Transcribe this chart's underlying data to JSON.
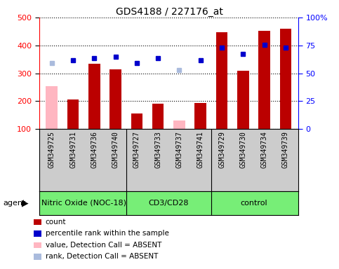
{
  "title": "GDS4188 / 227176_at",
  "samples": [
    "GSM349725",
    "GSM349731",
    "GSM349736",
    "GSM349740",
    "GSM349727",
    "GSM349733",
    "GSM349737",
    "GSM349741",
    "GSM349729",
    "GSM349730",
    "GSM349734",
    "GSM349739"
  ],
  "bar_values": [
    255,
    207,
    333,
    315,
    157,
    191,
    130,
    193,
    447,
    308,
    452,
    460
  ],
  "bar_absent": [
    true,
    false,
    false,
    false,
    false,
    false,
    true,
    false,
    false,
    false,
    false,
    false
  ],
  "dot_values_pct": [
    59,
    61.5,
    63.5,
    65,
    59.5,
    63.5,
    52.75,
    61.75,
    73,
    67.5,
    75.5,
    72.75
  ],
  "dot_absent": [
    true,
    false,
    false,
    false,
    false,
    false,
    true,
    false,
    false,
    false,
    false,
    false
  ],
  "groups": [
    {
      "label": "Nitric Oxide (NOC-18)",
      "start": 0,
      "end": 4
    },
    {
      "label": "CD3/CD28",
      "start": 4,
      "end": 8
    },
    {
      "label": "control",
      "start": 8,
      "end": 12
    }
  ],
  "ylim_left": [
    100,
    500
  ],
  "ylim_right": [
    0,
    100
  ],
  "yticks_left": [
    100,
    200,
    300,
    400,
    500
  ],
  "yticks_right": [
    0,
    25,
    50,
    75,
    100
  ],
  "yticklabels_right": [
    "0",
    "25",
    "50",
    "75",
    "100%"
  ],
  "bar_color_present": "#BB0000",
  "bar_color_absent": "#FFB6C1",
  "dot_color_present": "#0000CC",
  "dot_color_absent": "#AABBDD",
  "group_bg_color": "#77EE77",
  "sample_bg_color": "#CCCCCC",
  "legend_items": [
    {
      "color": "#BB0000",
      "label": "count"
    },
    {
      "color": "#0000CC",
      "label": "percentile rank within the sample"
    },
    {
      "color": "#FFB6C1",
      "label": "value, Detection Call = ABSENT"
    },
    {
      "color": "#AABBDD",
      "label": "rank, Detection Call = ABSENT"
    }
  ]
}
